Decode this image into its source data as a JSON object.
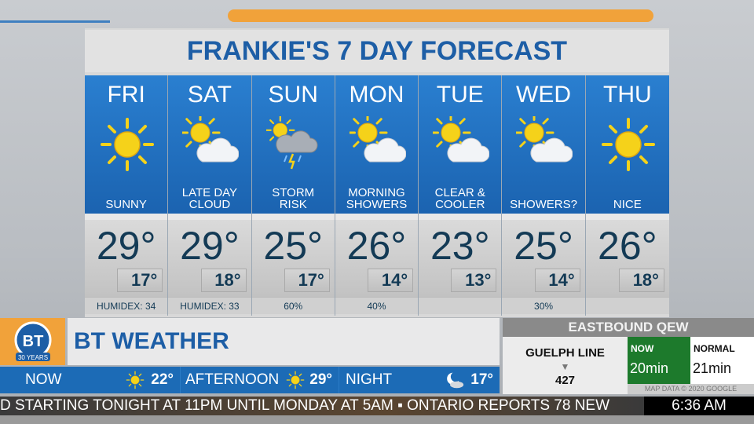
{
  "title": "FRANKIE'S 7 DAY FORECAST",
  "days": [
    {
      "day": "FRI",
      "icon": "sun",
      "condition": "SUNNY",
      "high": "29°",
      "low": "17°",
      "extra": "HUMIDEX: 34"
    },
    {
      "day": "SAT",
      "icon": "sun-cloud",
      "condition": "LATE DAY CLOUD",
      "high": "29°",
      "low": "18°",
      "extra": "HUMIDEX: 33"
    },
    {
      "day": "SUN",
      "icon": "storm",
      "condition": "STORM RISK",
      "high": "25°",
      "low": "17°",
      "extra": "60%"
    },
    {
      "day": "MON",
      "icon": "sun-cloud",
      "condition": "MORNING SHOWERS",
      "high": "26°",
      "low": "14°",
      "extra": "40%"
    },
    {
      "day": "TUE",
      "icon": "sun-cloud",
      "condition": "CLEAR & COOLER",
      "high": "23°",
      "low": "13°",
      "extra": ""
    },
    {
      "day": "WED",
      "icon": "sun-cloud",
      "condition": "SHOWERS?",
      "high": "25°",
      "low": "14°",
      "extra": "30%"
    },
    {
      "day": "THU",
      "icon": "sun",
      "condition": "NICE",
      "high": "26°",
      "low": "18°",
      "extra": ""
    }
  ],
  "logo": {
    "text": "BT",
    "years": "30 YEARS"
  },
  "show_title": "BT WEATHER",
  "current": [
    {
      "label": "NOW",
      "icon": "sun",
      "temp": "22°"
    },
    {
      "label": "AFTERNOON",
      "icon": "sun",
      "temp": "29°"
    },
    {
      "label": "NIGHT",
      "icon": "moon-cloud",
      "temp": "17°"
    }
  ],
  "traffic": {
    "heading": "EASTBOUND QEW",
    "location": "GUELPH LINE",
    "route": "427",
    "now_label": "NOW",
    "now_value": "20min",
    "normal_label": "NORMAL",
    "normal_value": "21min",
    "credit": "MAP DATA © 2020 GOOGLE"
  },
  "ticker": {
    "text": "D STARTING TONIGHT AT 11PM UNTIL MONDAY AT 5AM   ▪ ONTARIO REPORTS 78 NEW",
    "time": "6:36 AM"
  },
  "colors": {
    "brand_blue": "#1d5ea6",
    "accent_orange": "#f1a23a",
    "traffic_green": "#1d7a2c",
    "sun_yellow": "#f5d21a"
  }
}
